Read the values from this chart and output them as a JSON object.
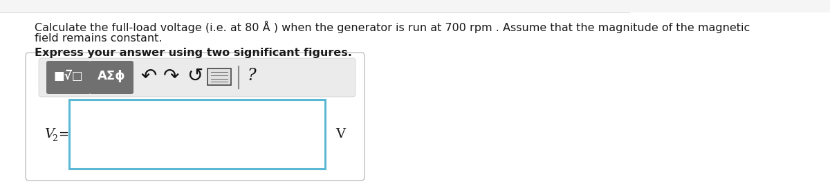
{
  "top_bar_color": "#f7f7f7",
  "main_bg": "#ffffff",
  "text_line1": "Calculate the full-load voltage (i.e. at 80 Å ) when the generator is run at 700 rpm . Assume that the magnitude of the magnetic",
  "text_line2": "field remains constant.",
  "bold_text": "Express your answer using two significant figures.",
  "label_text": "V",
  "label_sub": "2",
  "label_eq": " =",
  "unit_text": "V",
  "btn1_color": "#6e6e6e",
  "btn2_color": "#6e6e6e",
  "toolbar_bg": "#ebebeb",
  "outer_box_color": "#c8c8c8",
  "outer_box_fill": "#ffffff",
  "input_border_color": "#5bb8d4",
  "input_fill": "#ffffff",
  "text_color": "#1a1a1a",
  "icon_color": "#1a1a1a",
  "font_size_body": 11.5,
  "font_size_bold": 11.5,
  "font_size_label": 13,
  "font_size_btn": 13
}
